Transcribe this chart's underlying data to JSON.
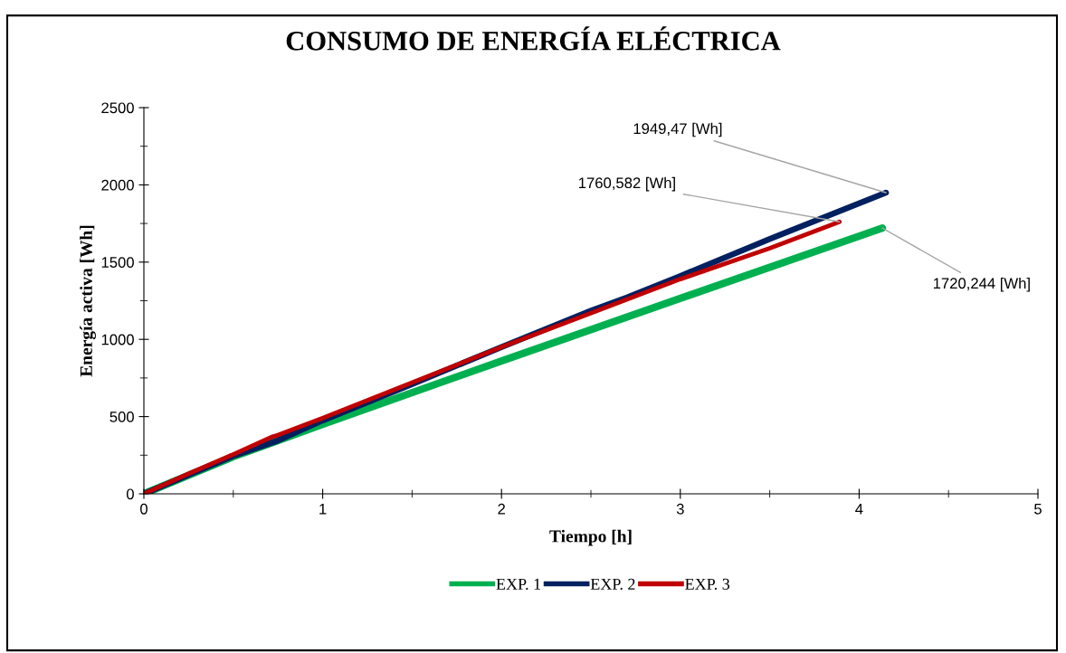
{
  "chart_data": {
    "type": "line",
    "title": "CONSUMO DE ENERGÍA ELÉCTRICA",
    "xlabel": "Tiempo [h]",
    "ylabel": "Energía activa [Wh]",
    "xlim": [
      0,
      5
    ],
    "xticks": [
      0,
      1,
      2,
      3,
      4,
      5
    ],
    "ylim": [
      0,
      2500
    ],
    "yticks": [
      0,
      500,
      1000,
      1500,
      2000,
      2500
    ],
    "grid": false,
    "legend": "bottom",
    "marker": "none",
    "line_style": "solid",
    "series": [
      {
        "name": "EXP. 1",
        "color": "#00b050",
        "x": [
          0,
          0.25,
          0.5,
          0.75,
          1,
          2,
          3,
          4.13
        ],
        "values": [
          0,
          120,
          240,
          345,
          450,
          860,
          1265,
          1720.244
        ]
      },
      {
        "name": "EXP. 2",
        "color": "#002060",
        "x": [
          0,
          0.5,
          0.75,
          1,
          1.5,
          2,
          2.5,
          2.7,
          3,
          3.5,
          4.15
        ],
        "values": [
          0,
          245,
          345,
          475,
          710,
          950,
          1185,
          1270,
          1410,
          1650,
          1949.47
        ]
      },
      {
        "name": "EXP. 3",
        "color": "#c00000",
        "x": [
          0,
          0.25,
          0.5,
          0.72,
          0.75,
          1,
          1.5,
          2,
          2.5,
          3,
          3.5,
          3.89
        ],
        "values": [
          0,
          130,
          255,
          370,
          380,
          490,
          720,
          950,
          1170,
          1390,
          1590,
          1760.582
        ]
      }
    ],
    "annotations": [
      {
        "text": "1949,47 [Wh]",
        "x": 4.15,
        "y": 1949.47
      },
      {
        "text": "1760,582 [Wh]",
        "x": 3.89,
        "y": 1760.582
      },
      {
        "text": "1720,244 [Wh]",
        "x": 4.13,
        "y": 1720.244
      }
    ]
  }
}
